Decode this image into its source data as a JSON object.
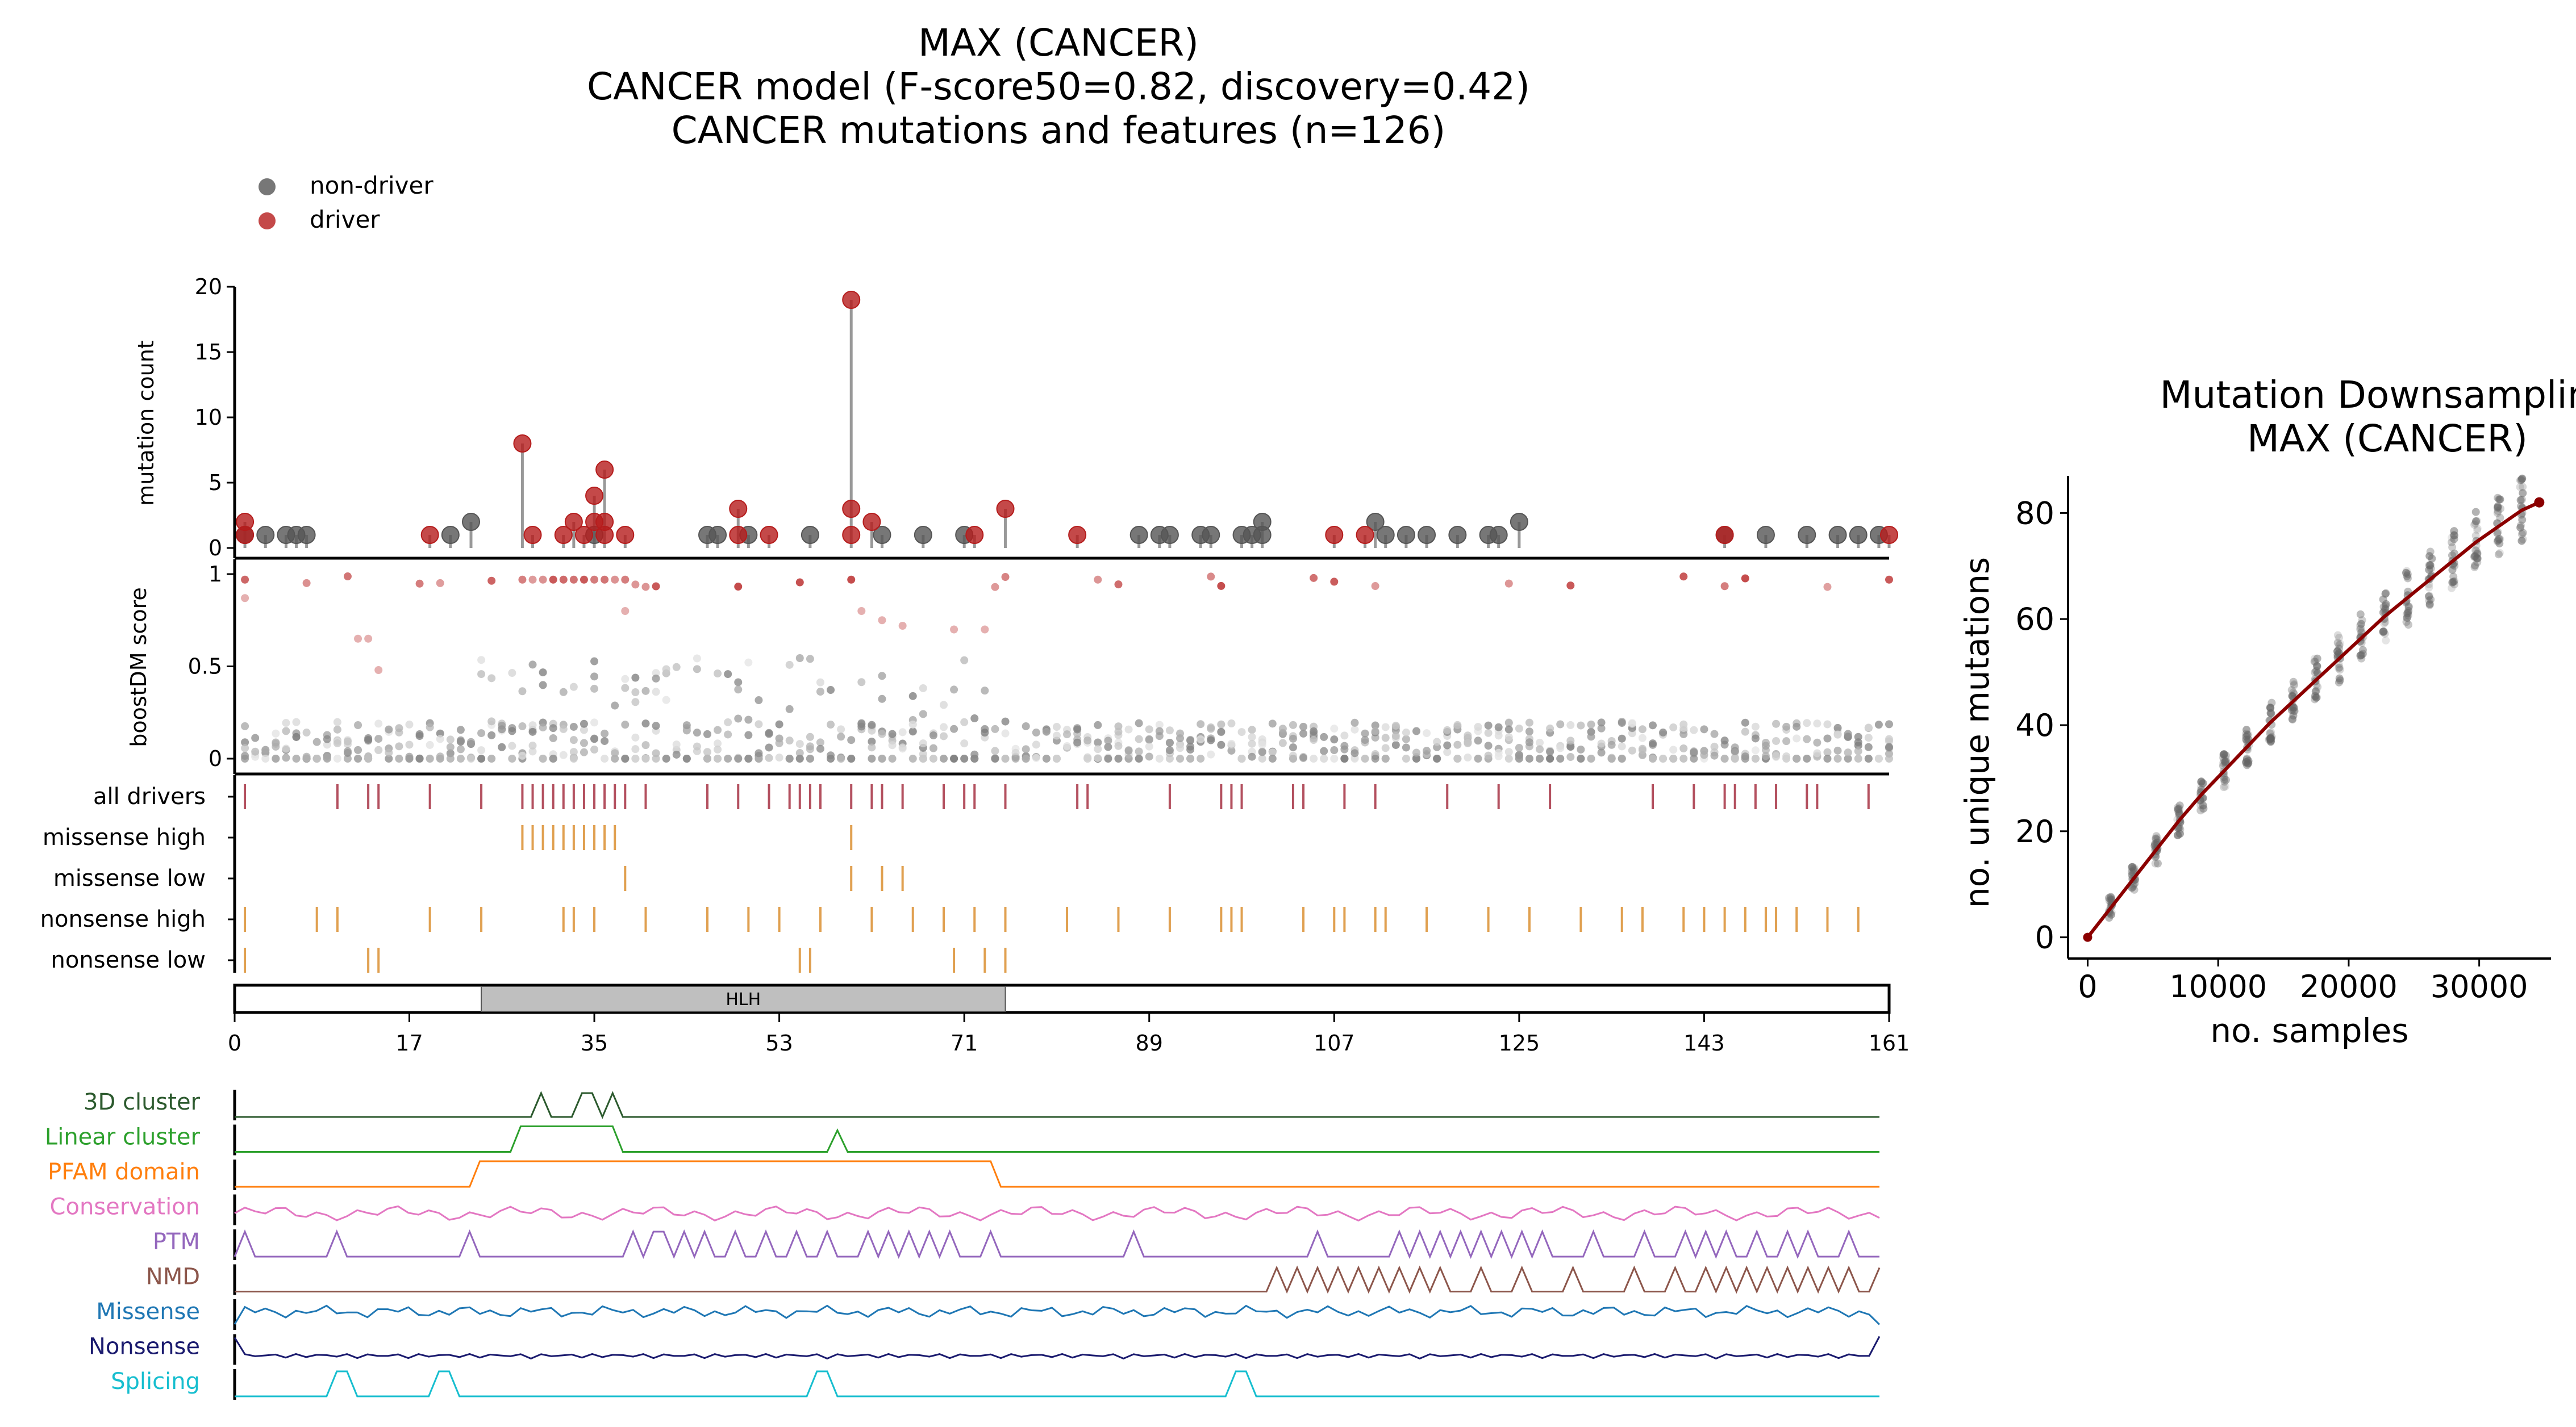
{
  "figure": {
    "title_lines": [
      "MAX (CANCER)",
      "CANCER model (F-score50=0.82, discovery=0.42)",
      "CANCER mutations and features (n=126)"
    ],
    "legend": [
      {
        "label": "non-driver",
        "color": "#555555"
      },
      {
        "label": "driver",
        "color": "#b51c1c"
      }
    ]
  },
  "colors": {
    "driver": "#b51c1c",
    "non_driver": "#555555",
    "driver_tick": "#b3505f",
    "feature_tick": "#e0a050",
    "domain_fill": "#bfbfbf",
    "downsample_line": "#8b0000"
  },
  "chart_data": [
    {
      "type": "scatter",
      "panel": "mutation-lollipop",
      "ylabel": "mutation count",
      "ylim": [
        0,
        20
      ],
      "yticks": [
        0,
        5,
        10,
        15,
        20
      ],
      "xlim": [
        0,
        161
      ],
      "xticks": [
        0,
        17,
        35,
        53,
        71,
        89,
        107,
        125,
        143,
        161
      ],
      "driver_points": [
        {
          "x": 1,
          "y": 2
        },
        {
          "x": 1,
          "y": 1
        },
        {
          "x": 19,
          "y": 1
        },
        {
          "x": 28,
          "y": 8
        },
        {
          "x": 29,
          "y": 1
        },
        {
          "x": 32,
          "y": 1
        },
        {
          "x": 33,
          "y": 2
        },
        {
          "x": 34,
          "y": 1
        },
        {
          "x": 35,
          "y": 4
        },
        {
          "x": 35,
          "y": 2
        },
        {
          "x": 36,
          "y": 6
        },
        {
          "x": 36,
          "y": 2
        },
        {
          "x": 36,
          "y": 1
        },
        {
          "x": 38,
          "y": 1
        },
        {
          "x": 49,
          "y": 3
        },
        {
          "x": 49,
          "y": 1
        },
        {
          "x": 52,
          "y": 1
        },
        {
          "x": 60,
          "y": 19
        },
        {
          "x": 60,
          "y": 3
        },
        {
          "x": 60,
          "y": 1
        },
        {
          "x": 62,
          "y": 2
        },
        {
          "x": 72,
          "y": 1
        },
        {
          "x": 75,
          "y": 3
        },
        {
          "x": 82,
          "y": 1
        },
        {
          "x": 107,
          "y": 1
        },
        {
          "x": 110,
          "y": 1
        },
        {
          "x": 145,
          "y": 1
        },
        {
          "x": 161,
          "y": 1
        }
      ],
      "nondriver_points": [
        {
          "x": 1,
          "y": 1
        },
        {
          "x": 3,
          "y": 1
        },
        {
          "x": 5,
          "y": 1
        },
        {
          "x": 6,
          "y": 1
        },
        {
          "x": 7,
          "y": 1
        },
        {
          "x": 21,
          "y": 1
        },
        {
          "x": 23,
          "y": 2
        },
        {
          "x": 35,
          "y": 1
        },
        {
          "x": 46,
          "y": 1
        },
        {
          "x": 47,
          "y": 1
        },
        {
          "x": 50,
          "y": 1
        },
        {
          "x": 56,
          "y": 1
        },
        {
          "x": 63,
          "y": 1
        },
        {
          "x": 67,
          "y": 1
        },
        {
          "x": 71,
          "y": 1
        },
        {
          "x": 88,
          "y": 1
        },
        {
          "x": 90,
          "y": 1
        },
        {
          "x": 91,
          "y": 1
        },
        {
          "x": 94,
          "y": 1
        },
        {
          "x": 95,
          "y": 1
        },
        {
          "x": 98,
          "y": 1
        },
        {
          "x": 99,
          "y": 1
        },
        {
          "x": 100,
          "y": 2
        },
        {
          "x": 100,
          "y": 1
        },
        {
          "x": 111,
          "y": 2
        },
        {
          "x": 112,
          "y": 1
        },
        {
          "x": 114,
          "y": 1
        },
        {
          "x": 116,
          "y": 1
        },
        {
          "x": 119,
          "y": 1
        },
        {
          "x": 122,
          "y": 1
        },
        {
          "x": 123,
          "y": 1
        },
        {
          "x": 125,
          "y": 2
        },
        {
          "x": 145,
          "y": 1
        },
        {
          "x": 149,
          "y": 1
        },
        {
          "x": 153,
          "y": 1
        },
        {
          "x": 156,
          "y": 1
        },
        {
          "x": 158,
          "y": 1
        },
        {
          "x": 160,
          "y": 1
        }
      ]
    },
    {
      "type": "scatter",
      "panel": "boostdm-score",
      "ylabel": "boostDM score",
      "ylim": [
        0,
        1
      ],
      "yticks": [
        0,
        0.5,
        1
      ],
      "tick_labels": [
        "0",
        "0.5",
        "1"
      ],
      "xlim": [
        0,
        161
      ],
      "note": "per-residue in-silico saturation scores; values approximate"
    },
    {
      "type": "table",
      "panel": "feature-tracks",
      "rows": [
        "all drivers",
        "missense high",
        "missense low",
        "nonsense high",
        "nonsense low"
      ],
      "positions": {
        "all drivers": [
          1,
          10,
          13,
          14,
          19,
          24,
          28,
          29,
          30,
          31,
          32,
          33,
          34,
          35,
          36,
          37,
          38,
          40,
          46,
          49,
          52,
          54,
          55,
          56,
          57,
          60,
          62,
          63,
          65,
          69,
          71,
          72,
          75,
          82,
          83,
          91,
          96,
          97,
          98,
          103,
          104,
          108,
          111,
          118,
          123,
          128,
          138,
          142,
          145,
          146,
          148,
          150,
          153,
          154,
          159
        ],
        "missense high": [
          28,
          29,
          30,
          31,
          32,
          33,
          34,
          35,
          36,
          37,
          60
        ],
        "missense low": [
          38,
          60,
          63,
          65
        ],
        "nonsense high": [
          1,
          8,
          10,
          19,
          24,
          32,
          33,
          35,
          40,
          46,
          50,
          53,
          57,
          62,
          66,
          69,
          72,
          75,
          81,
          86,
          91,
          96,
          97,
          98,
          104,
          107,
          108,
          111,
          112,
          116,
          122,
          126,
          131,
          135,
          137,
          141,
          143,
          145,
          147,
          149,
          150,
          152,
          155,
          158
        ],
        "nonsense low": [
          1,
          13,
          14,
          55,
          56,
          70,
          73,
          75
        ]
      }
    },
    {
      "type": "bar",
      "panel": "protein-domains",
      "domains": [
        {
          "name": "HLH",
          "start": 24,
          "end": 75
        }
      ],
      "xlim": [
        0,
        161
      ]
    },
    {
      "type": "line",
      "panel": "feature-profiles",
      "series": [
        {
          "name": "3D cluster",
          "color": "#2c5a2e"
        },
        {
          "name": "Linear cluster",
          "color": "#2ca02c"
        },
        {
          "name": "PFAM domain",
          "color": "#ff7f0e"
        },
        {
          "name": "Conservation",
          "color": "#e377c2"
        },
        {
          "name": "PTM",
          "color": "#9467bd"
        },
        {
          "name": "NMD",
          "color": "#8c564b"
        },
        {
          "name": "Missense",
          "color": "#1f77b4"
        },
        {
          "name": "Nonsense",
          "color": "#1a1a6e"
        },
        {
          "name": "Splicing",
          "color": "#17becf"
        }
      ]
    },
    {
      "type": "scatter",
      "panel": "downsampling",
      "title": "Mutation Downsampling\nMAX (CANCER)",
      "title_lines": [
        "Mutation Downsampling",
        "MAX (CANCER)"
      ],
      "xlabel": "no. samples",
      "ylabel": "no. unique mutations",
      "xlim": [
        -1500,
        35500
      ],
      "ylim": [
        -4,
        87
      ],
      "xticks": [
        0,
        10000,
        20000,
        30000
      ],
      "yticks": [
        0,
        20,
        40,
        60,
        80
      ],
      "x": [
        0,
        1750,
        3500,
        5250,
        7000,
        8750,
        10500,
        12250,
        14000,
        15750,
        17500,
        19250,
        21000,
        22750,
        24500,
        26250,
        28000,
        29750,
        31500,
        33250,
        34600
      ],
      "y": [
        0,
        5.5,
        11,
        16.5,
        22,
        27,
        31.5,
        36,
        40.5,
        44.5,
        48.5,
        52.5,
        56.5,
        60.5,
        64,
        67.5,
        71,
        74.5,
        77.5,
        80.5,
        82
      ]
    }
  ]
}
